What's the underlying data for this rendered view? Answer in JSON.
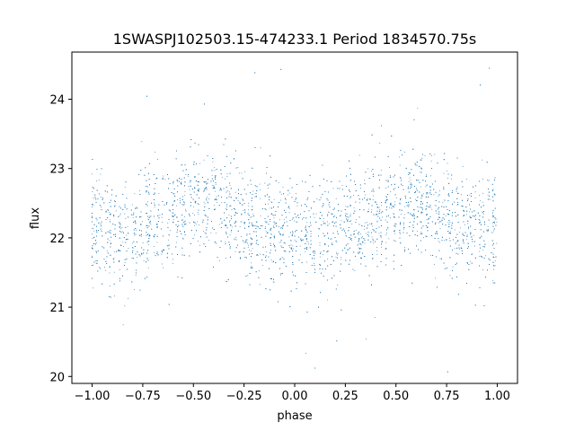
{
  "chart_data": {
    "type": "scatter",
    "title": "1SWASPJ102503.15-474233.1 Period 1834570.75s",
    "xlabel": "phase",
    "ylabel": "flux",
    "xlim": [
      -1.1,
      1.1
    ],
    "ylim": [
      19.9,
      24.68
    ],
    "xticks": [
      -1.0,
      -0.75,
      -0.5,
      -0.25,
      0.0,
      0.25,
      0.5,
      0.75,
      1.0
    ],
    "xtick_labels": [
      "−1.00",
      "−0.75",
      "−0.50",
      "−0.25",
      "0.00",
      "0.25",
      "0.50",
      "0.75",
      "1.00"
    ],
    "yticks": [
      20,
      21,
      22,
      23,
      24
    ],
    "ytick_labels": [
      "20",
      "21",
      "22",
      "23",
      "24"
    ],
    "grid": false,
    "marker_color": "#1f77b4",
    "phase_range": [
      -1.0,
      1.0
    ],
    "series": [
      {
        "x": [
          -1.0,
          -0.9,
          -0.8,
          -0.7,
          -0.6,
          -0.5,
          -0.4,
          -0.3,
          -0.2,
          -0.1,
          0.0,
          0.1,
          0.2,
          0.3,
          0.4,
          0.5,
          0.6,
          0.7,
          0.8,
          0.9,
          1.0
        ],
        "y": [
          22.15,
          22.1,
          22.05,
          22.25,
          22.35,
          22.45,
          22.5,
          22.4,
          22.2,
          22.15,
          22.1,
          22.05,
          22.1,
          22.25,
          22.35,
          22.45,
          22.5,
          22.4,
          22.2,
          22.1,
          22.15
        ]
      }
    ],
    "scatter_sigma": 0.38,
    "outlier_range": [
      20.0,
      24.5
    ]
  }
}
